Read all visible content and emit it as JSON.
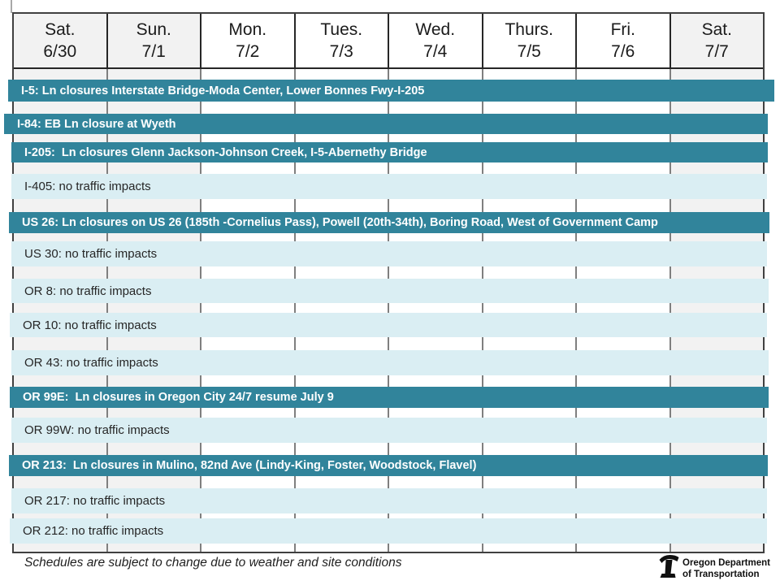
{
  "header": {
    "days": [
      {
        "name": "Sat.",
        "date": "6/30"
      },
      {
        "name": "Sun.",
        "date": "7/1"
      },
      {
        "name": "Mon.",
        "date": "7/2"
      },
      {
        "name": "Tues.",
        "date": "7/3"
      },
      {
        "name": "Wed.",
        "date": "7/4"
      },
      {
        "name": "Thurs.",
        "date": "7/5"
      },
      {
        "name": "Fri.",
        "date": "7/6"
      },
      {
        "name": "Sat.",
        "date": "7/7"
      }
    ],
    "weekend_indices": [
      0,
      1,
      7
    ]
  },
  "rows": [
    {
      "route": "I-5",
      "type": "closure",
      "label": "I-5: Ln closures Interstate Bridge-Moda Center, Lower Bonnes Fwy-I-205"
    },
    {
      "route": "I-84",
      "type": "closure",
      "label": "I-84: EB Ln closure at Wyeth"
    },
    {
      "route": "I-205",
      "type": "closure",
      "label": "I-205:  Ln closures Glenn Jackson-Johnson Creek, I-5-Abernethy Bridge"
    },
    {
      "route": "I-405",
      "type": "no_impact",
      "label": "I-405: no traffic impacts"
    },
    {
      "route": "US 26",
      "type": "closure",
      "label": "US 26: Ln closures on US 26 (185th -Cornelius Pass), Powell (20th-34th), Boring Road, West of Government Camp"
    },
    {
      "route": "US 30",
      "type": "no_impact",
      "label": "US 30: no traffic impacts"
    },
    {
      "route": "OR 8",
      "type": "no_impact",
      "label": "OR 8: no traffic impacts"
    },
    {
      "route": "OR 10",
      "type": "no_impact",
      "label": "OR 10: no traffic impacts"
    },
    {
      "route": "OR 43",
      "type": "no_impact",
      "label": "OR 43: no traffic impacts"
    },
    {
      "route": "OR 99E",
      "type": "closure",
      "label": "OR 99E:  Ln closures in Oregon City 24/7 resume July 9"
    },
    {
      "route": "OR 99W",
      "type": "no_impact",
      "label": "OR 99W: no traffic impacts"
    },
    {
      "route": "OR 213",
      "type": "closure",
      "label": "OR 213:  Ln closures in Mulino, 82nd Ave (Lindy-King, Foster, Woodstock, Flavel)"
    },
    {
      "route": "OR 217",
      "type": "no_impact",
      "label": "OR 217: no traffic impacts"
    },
    {
      "route": "OR 212",
      "type": "no_impact",
      "label": "OR 212: no traffic impacts"
    }
  ],
  "footer": {
    "note": "Schedules are subject to change due to weather and site conditions",
    "logo": {
      "icon": "odot-mark",
      "line1": "Oregon Department",
      "line2": "of Transportation"
    }
  },
  "colors": {
    "closure_bar": "#31849B",
    "closure_text": "#FFFFFF",
    "no_impact_bar": "#DAEEF3",
    "no_impact_text": "#262626",
    "weekend_column_bg": "#F2F2F2",
    "header_border": "#262626",
    "grid_border": "#7F7F7F"
  }
}
